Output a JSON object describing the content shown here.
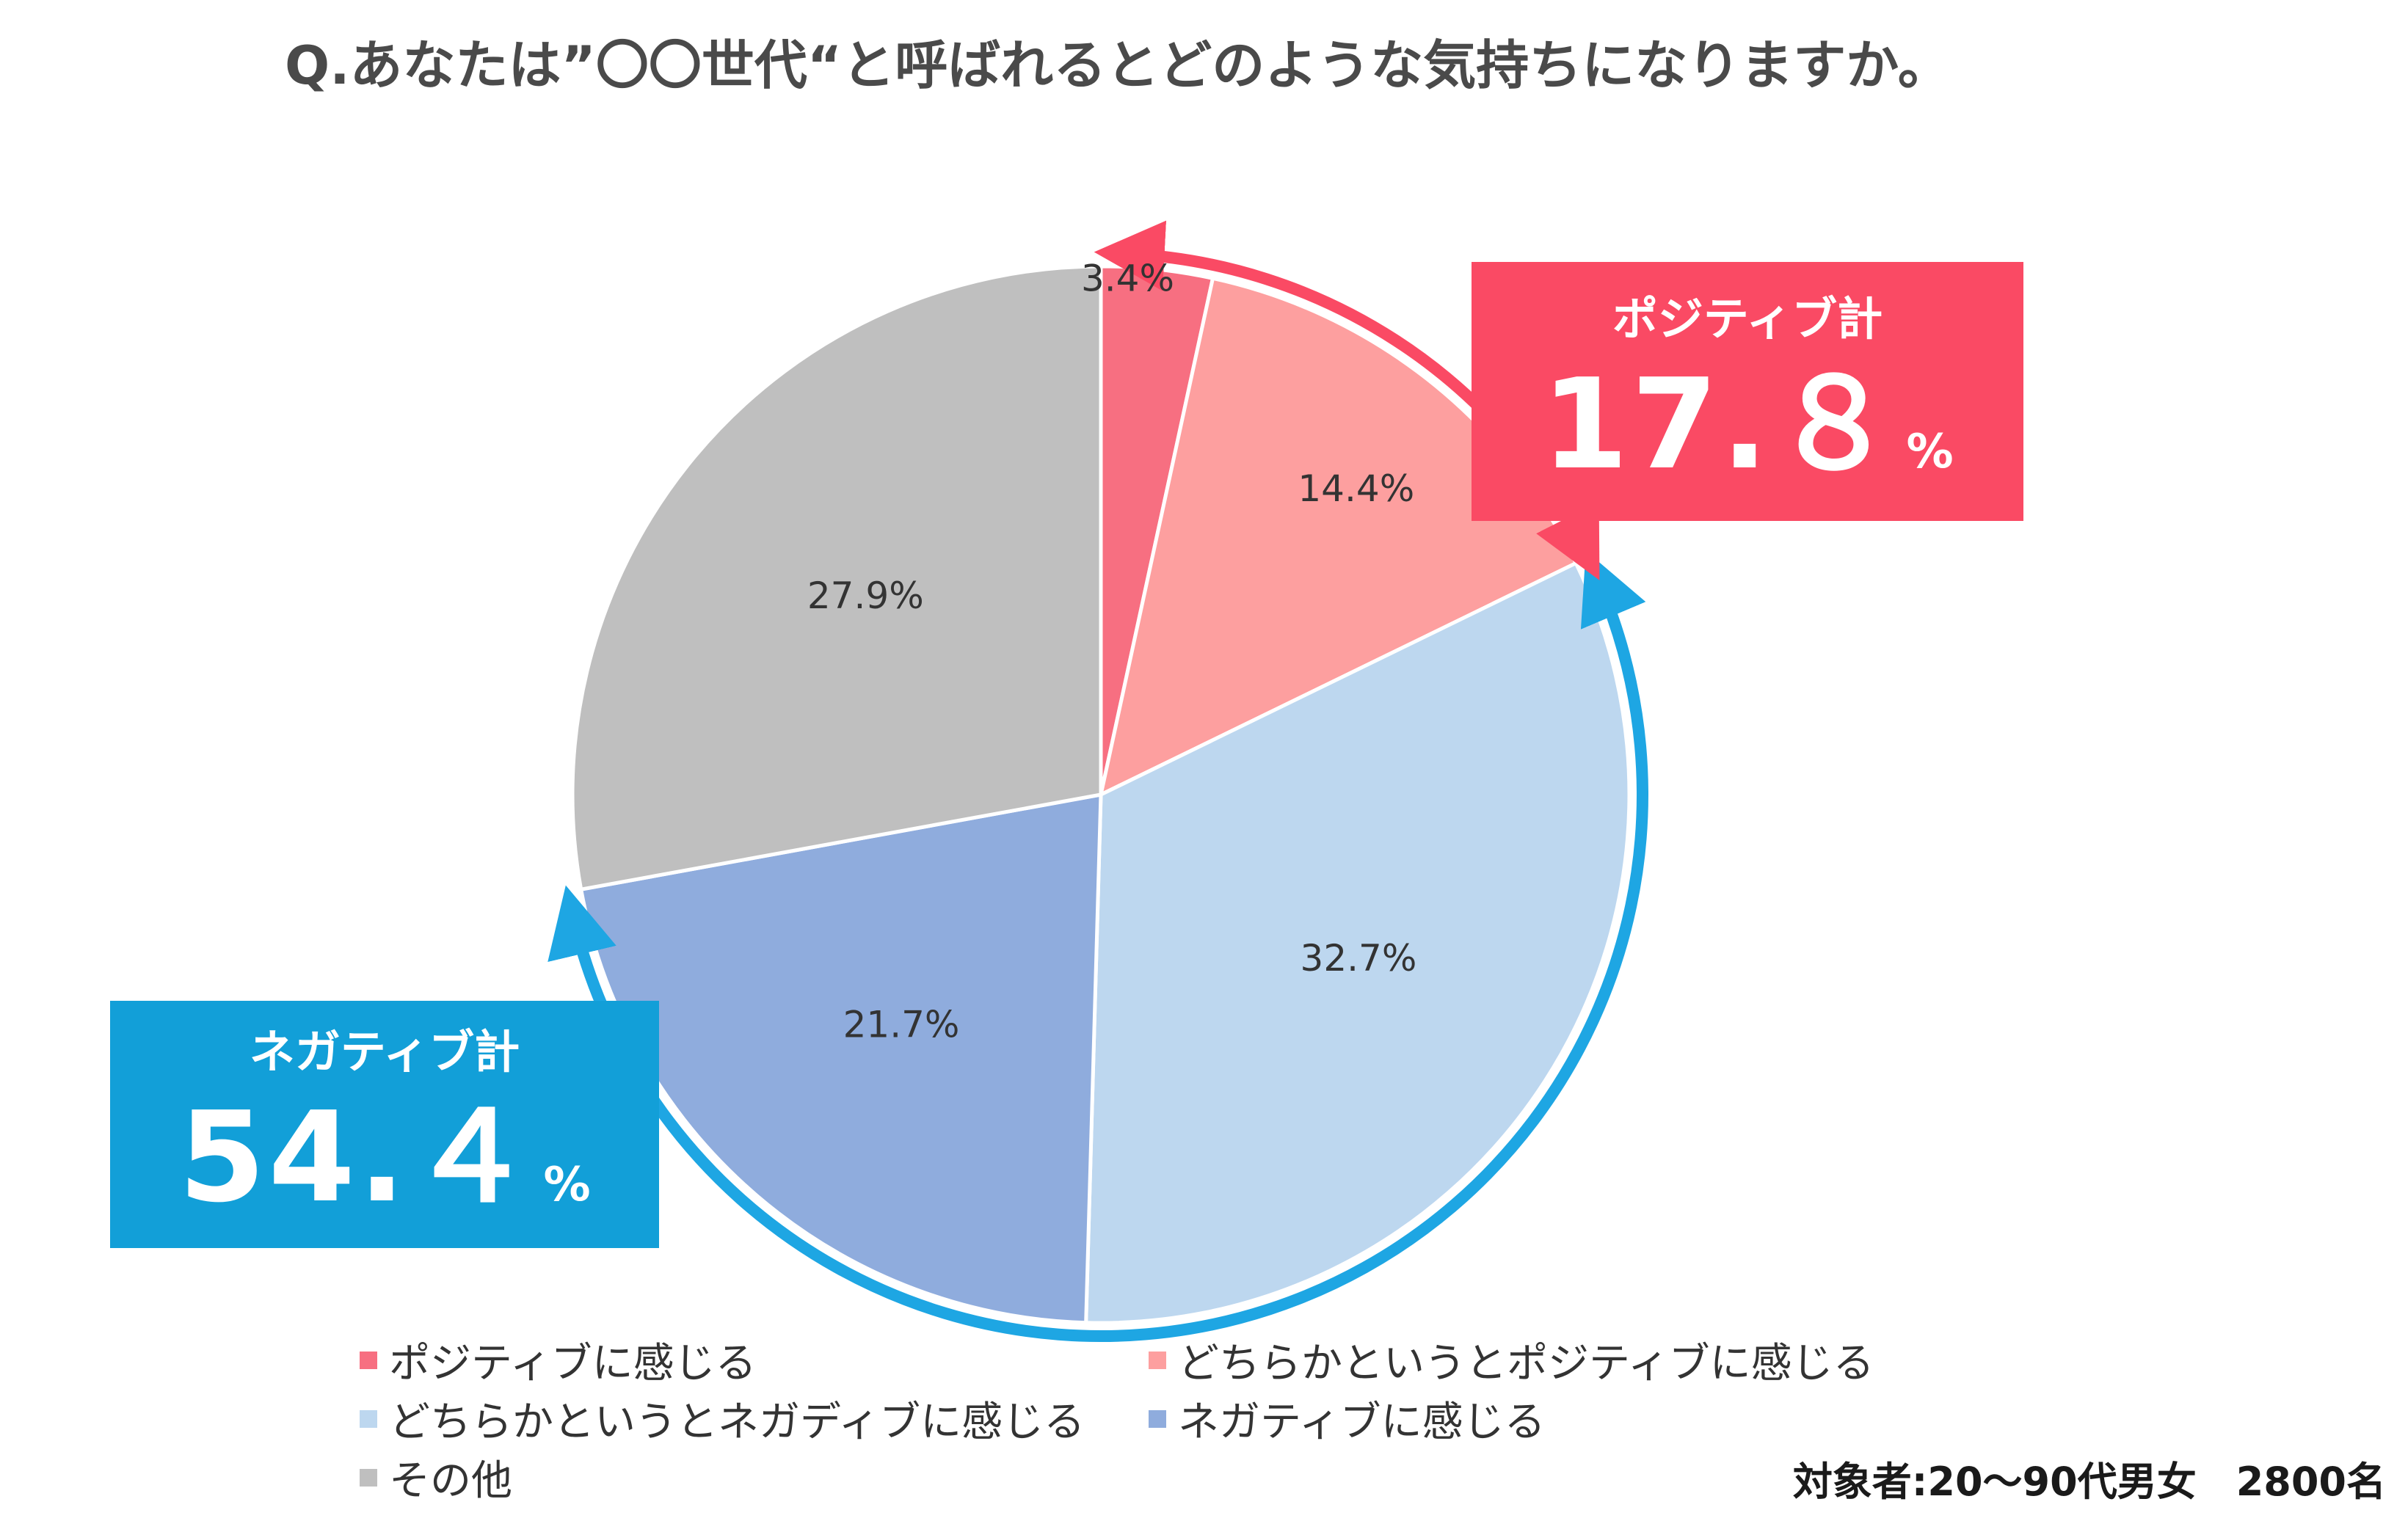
{
  "title": "Q.あなたは”〇〇世代“と呼ばれるとどのような気持ちになりますか。",
  "chart_data": {
    "type": "pie",
    "categories": [
      "ポジティブに感じる",
      "どちらかというとポジティブに感じる",
      "どちらかというとネガディブに感じる",
      "ネガティブに感じる",
      "その他"
    ],
    "values": [
      3.4,
      14.4,
      32.7,
      21.7,
      27.9
    ],
    "data_labels": [
      "3.4%",
      "14.4%",
      "32.7%",
      "21.7%",
      "27.9%"
    ],
    "colors": [
      "#f76f81",
      "#fd9f9f",
      "#bdd7ef",
      "#8facdd",
      "#bfbfbf"
    ],
    "legend_position": "bottom"
  },
  "callouts": {
    "positive": {
      "label": "ポジティブ計",
      "value": "17.８",
      "unit": "%",
      "color": "#fa4a64"
    },
    "negative": {
      "label": "ネガティブ計",
      "value": "54.４",
      "unit": "%",
      "color": "#129fd8"
    }
  },
  "footnote": "対象者:20～90代男女　2800名"
}
